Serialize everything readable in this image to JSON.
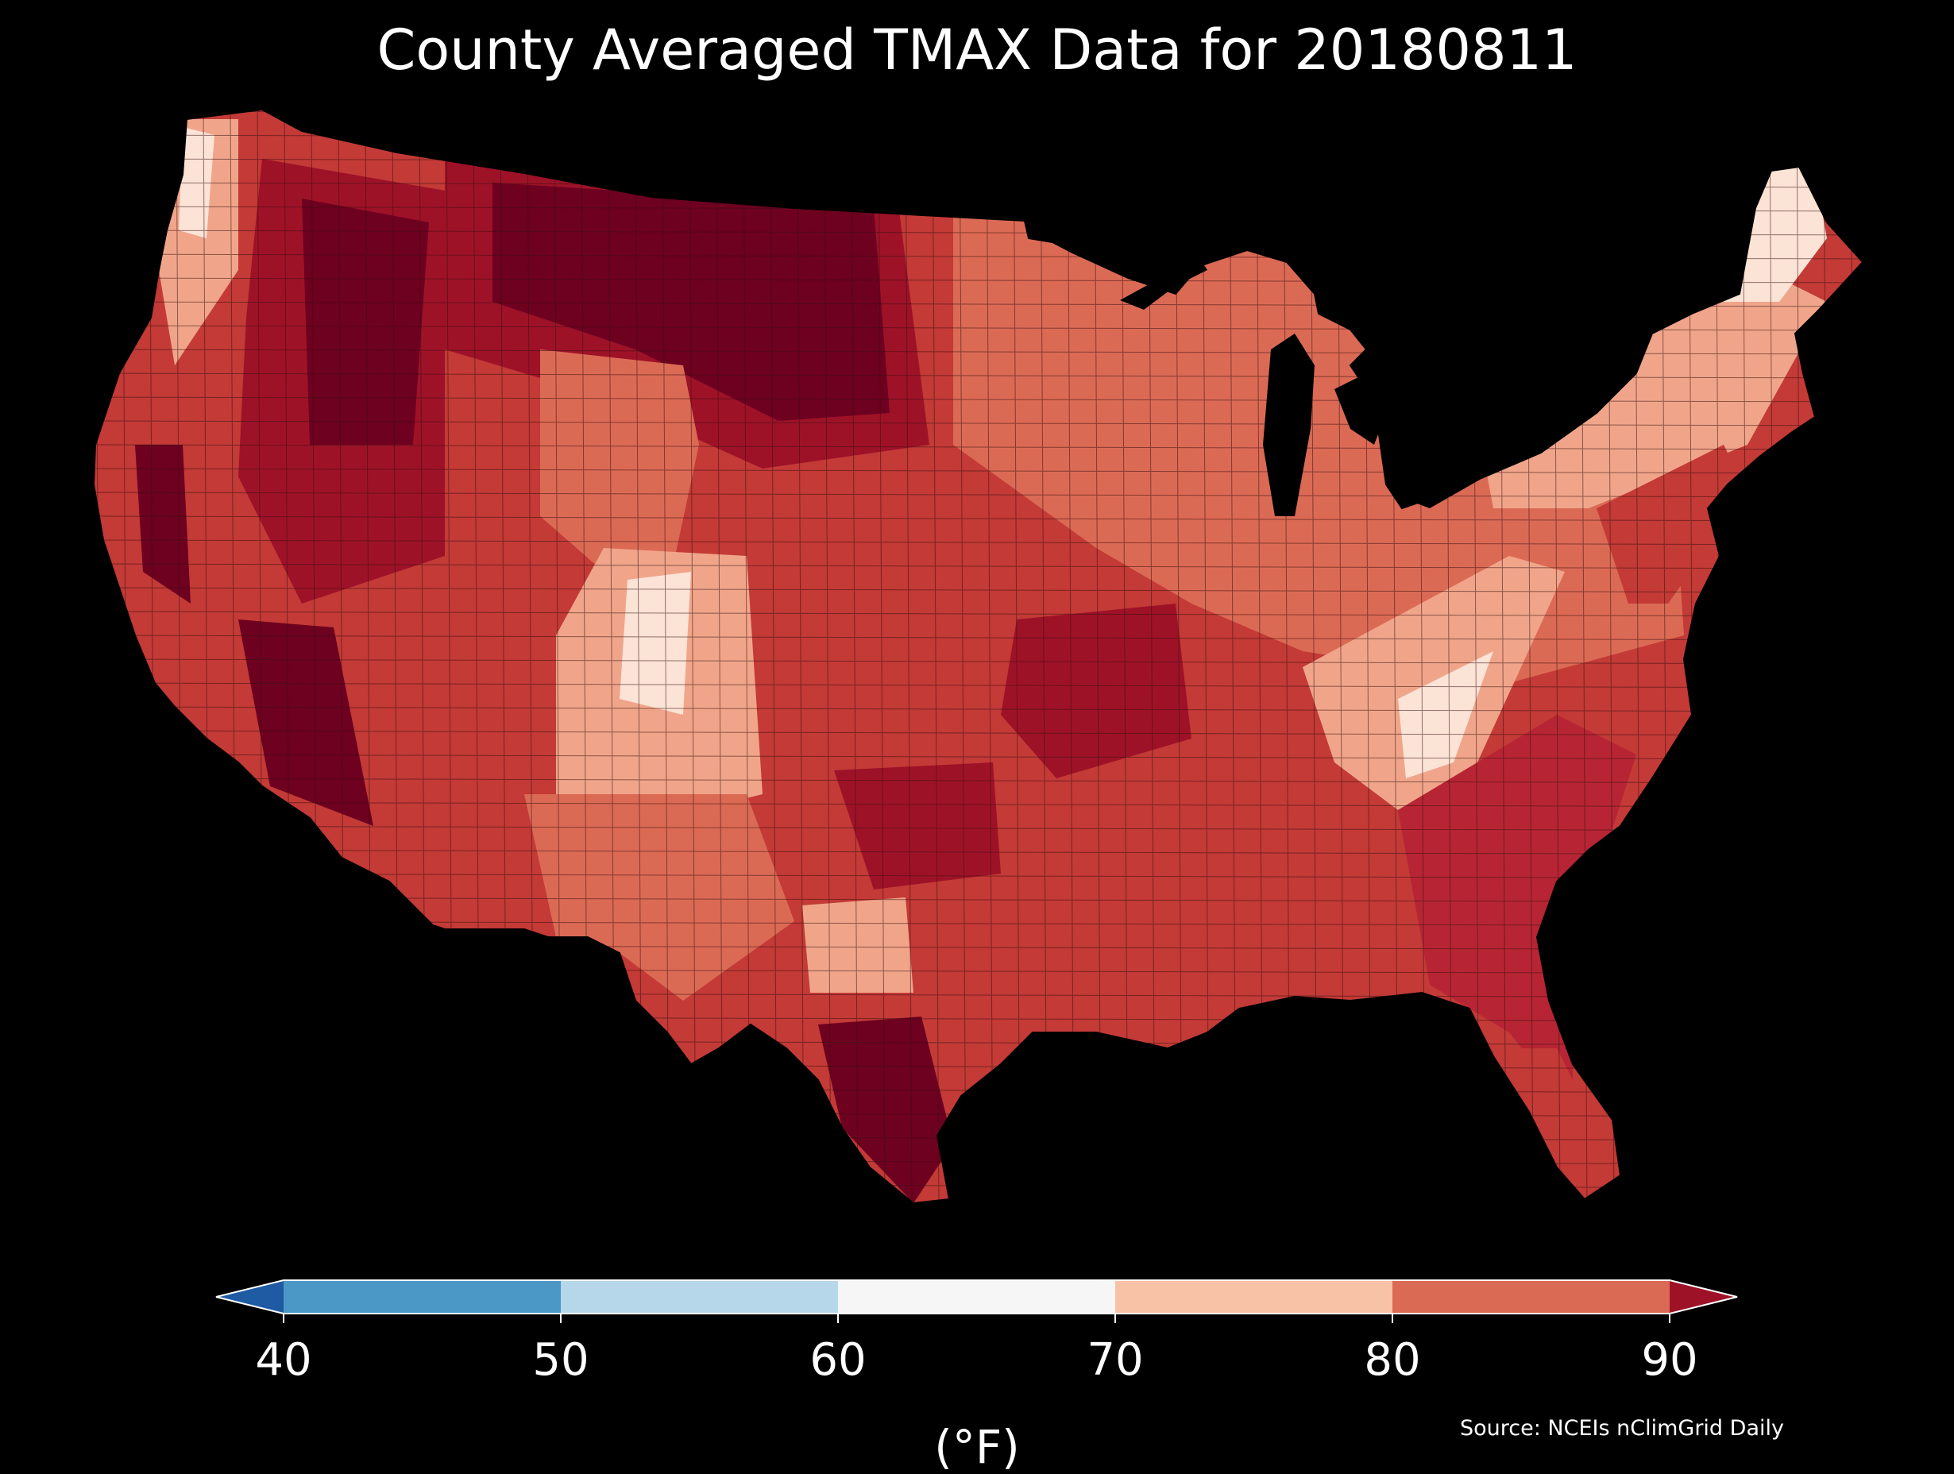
{
  "title": "County Averaged TMAX Data for 20180811",
  "legend": {
    "unit_label": "(°F)",
    "ticks": [
      "40",
      "50",
      "60",
      "70",
      "80",
      "90"
    ],
    "bins": [
      {
        "range": "<40",
        "color": "#1f5ba3"
      },
      {
        "range": "40-50",
        "color": "#4b98c7"
      },
      {
        "range": "50-60",
        "color": "#b6d7e9"
      },
      {
        "range": "60-70",
        "color": "#f6f6f6"
      },
      {
        "range": "70-80",
        "color": "#f8c2a6"
      },
      {
        "range": "80-90",
        "color": "#db6a55"
      },
      {
        "range": ">90",
        "color": "#9e1228"
      }
    ],
    "extend": "both"
  },
  "source": "Source: NCEIs nClimGrid Daily",
  "colors": {
    "background": "#000000",
    "county_border": "#3a1010",
    "hottest": "#6e0020",
    "very_hot": "#9e1228",
    "hot": "#c33a36",
    "warm": "#db6a55",
    "mild": "#f0a58a",
    "cool": "#f8c2a6",
    "coolest": "#fbe3d6"
  },
  "map": {
    "region": "Contiguous United States",
    "variable": "TMAX"
  }
}
